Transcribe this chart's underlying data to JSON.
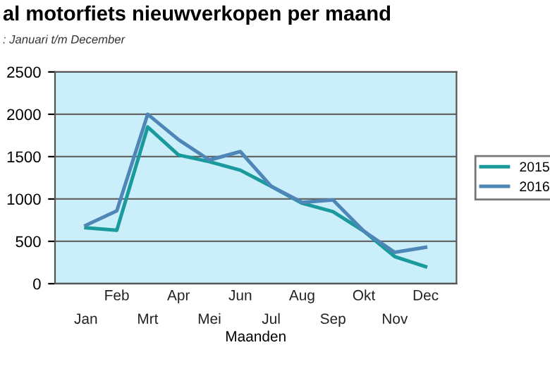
{
  "chart_data": {
    "type": "line",
    "title": "al motorfiets nieuwverkopen per maand",
    "subtitle": ": Januari t/m December",
    "xlabel": "Maanden",
    "categories": [
      "Jan",
      "Feb",
      "Mrt",
      "Apr",
      "Mei",
      "Jun",
      "Jul",
      "Aug",
      "Sep",
      "Okt",
      "Nov",
      "Dec"
    ],
    "series": [
      {
        "name": "2015",
        "color": "#1a9a9c",
        "values": [
          660,
          630,
          1850,
          1520,
          1440,
          1340,
          1150,
          950,
          850,
          620,
          320,
          200
        ]
      },
      {
        "name": "2016",
        "color": "#4f86b8",
        "values": [
          690,
          860,
          2000,
          1700,
          1460,
          1560,
          1150,
          960,
          990,
          620,
          370,
          430
        ]
      }
    ],
    "ylim": [
      0,
      2500
    ],
    "yticks": [
      0,
      500,
      1000,
      1500,
      2000,
      2500
    ],
    "grid": "y",
    "legend": "right",
    "marker": "none",
    "line_style": "solid"
  }
}
